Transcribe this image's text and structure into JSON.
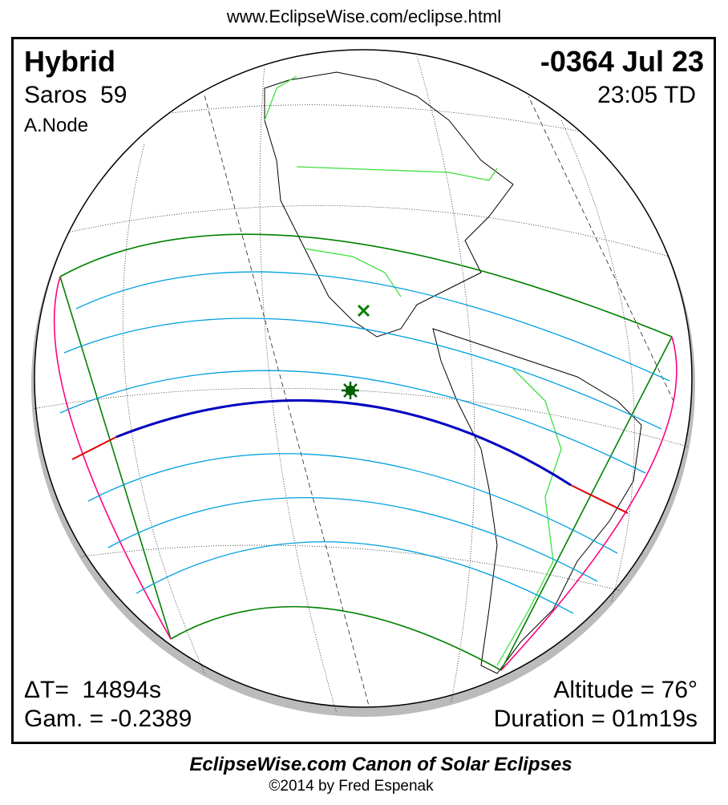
{
  "header_url": "www.EclipseWise.com/eclipse.html",
  "eclipse": {
    "type": "Hybrid",
    "saros": "Saros  59",
    "node": "A.Node",
    "date": "-0364 Jul 23",
    "time": "23:05 TD",
    "delta_t": "ΔT=  14894s",
    "gamma": "Gam. = -0.2389",
    "altitude": "Altitude = 76°",
    "duration": "Duration = 01m19s"
  },
  "footer": {
    "title": "EclipseWise.com Canon of Solar Eclipses",
    "copyright": "©2014 by Fred Espenak"
  },
  "colors": {
    "penumbral_limits": "#008000",
    "rise_set_curves": "#ff0080",
    "magnitude_lines": "#00a0e0",
    "central_line_annular_total": "#0000c0",
    "central_line_annular": "#e00000",
    "borders": "#40e040",
    "coastlines": "#000000"
  },
  "markers": {
    "greatest_eclipse": "star-icon",
    "sub_solar": "x-icon"
  }
}
